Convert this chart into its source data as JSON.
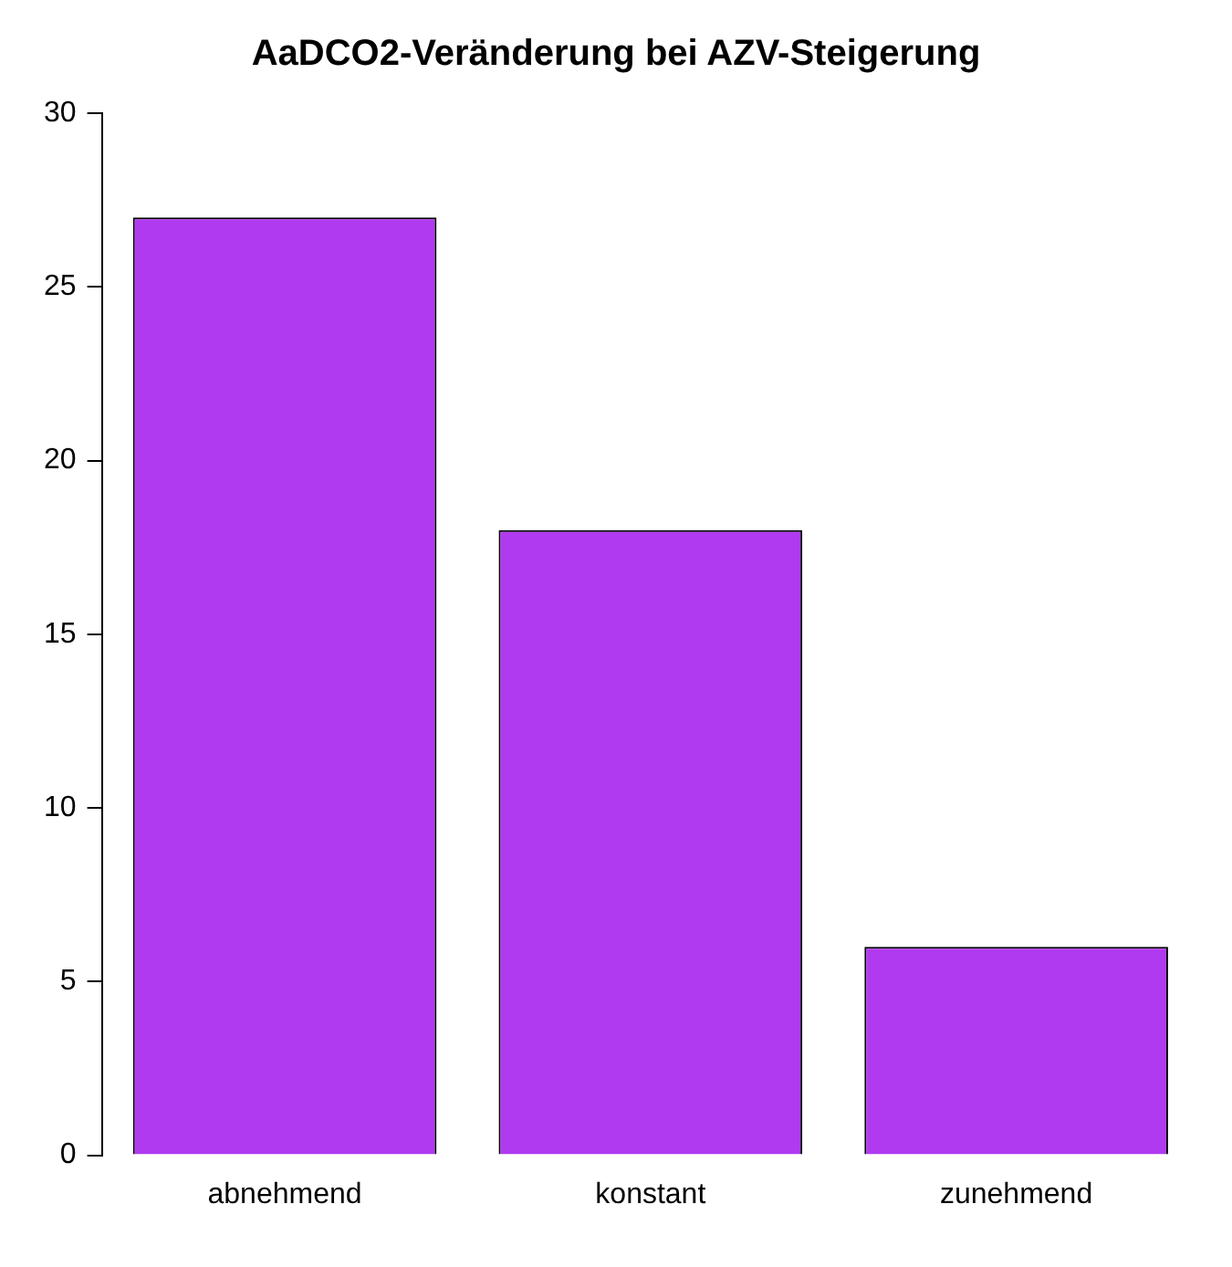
{
  "chart_data": {
    "type": "bar",
    "title": "AaDCO2-Veränderung bei AZV-Steigerung",
    "categories": [
      "abnehmend",
      "konstant",
      "zunehmend"
    ],
    "values": [
      27,
      18,
      6
    ],
    "color": "#b03af0",
    "ylim": [
      0,
      30
    ],
    "yticks": [
      0,
      5,
      10,
      15,
      20,
      25,
      30
    ],
    "grid": false
  }
}
